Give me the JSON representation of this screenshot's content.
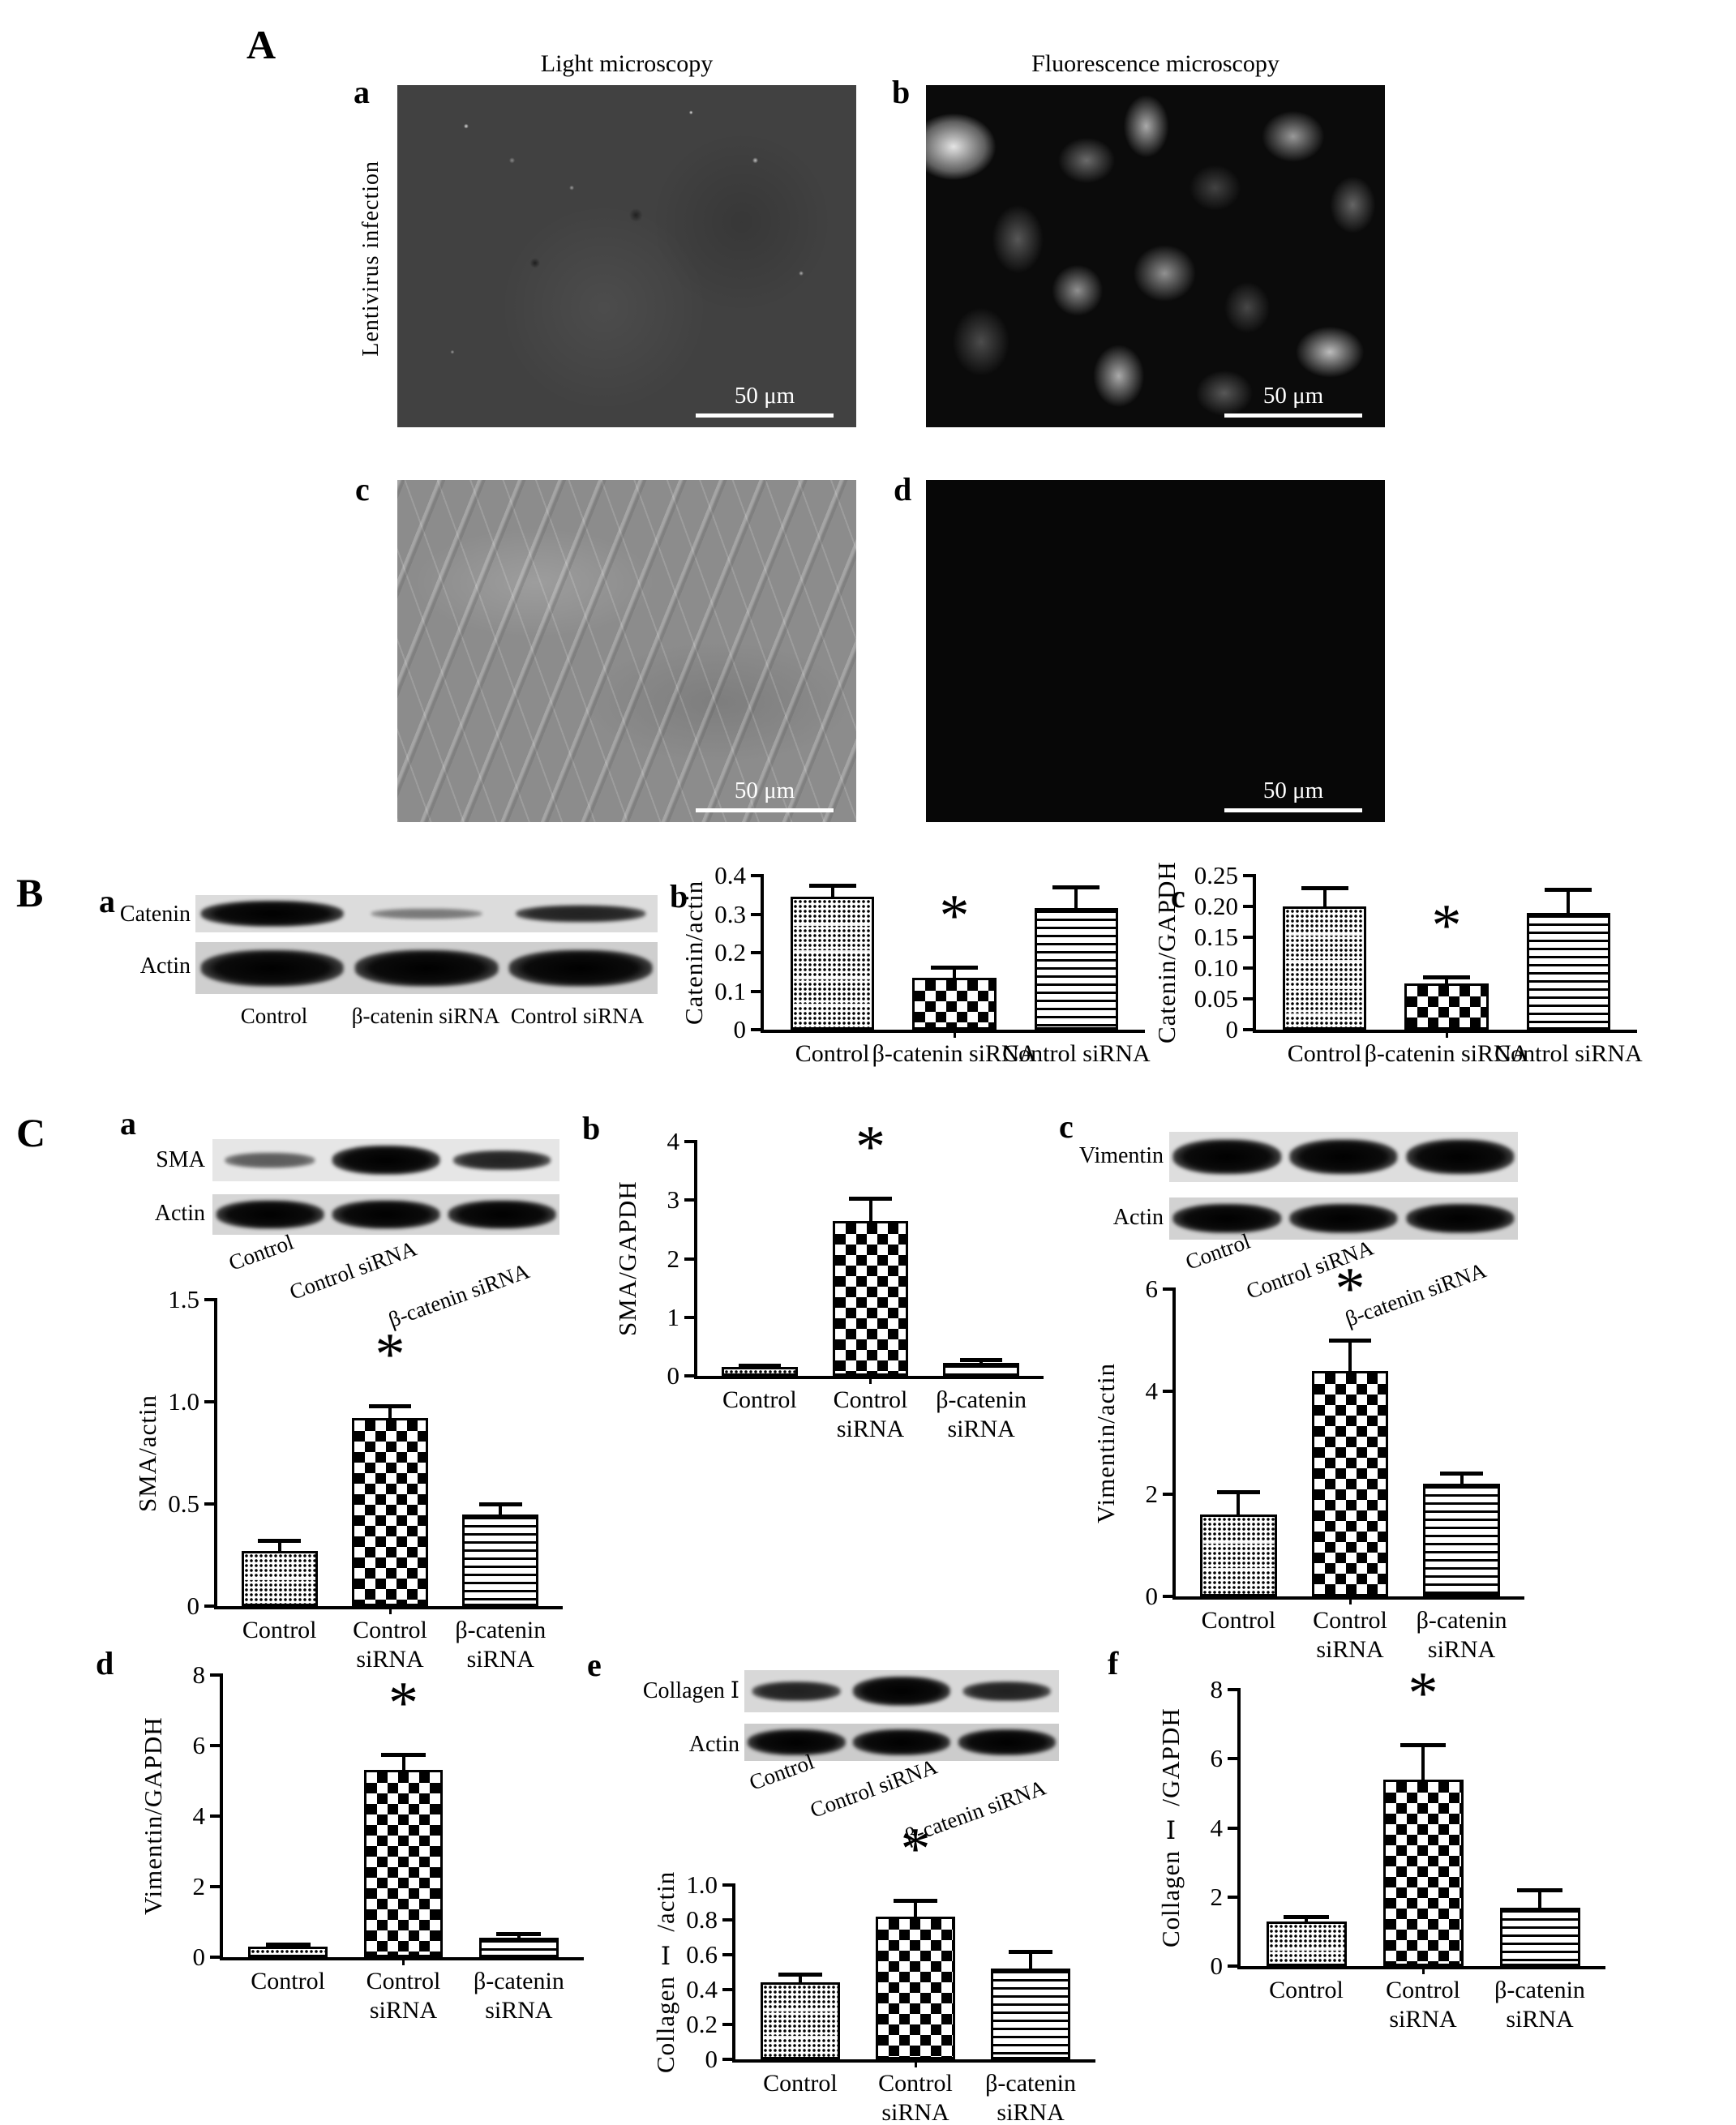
{
  "panel_a": {
    "label": "A",
    "col_titles": [
      "Light microscopy",
      "Fluorescence microscopy"
    ],
    "row_label": "Lentivirus infection",
    "image_labels": [
      "a",
      "b",
      "c",
      "d"
    ],
    "scale_bar": "50 μm"
  },
  "panel_b": {
    "label": "B",
    "sub_labels": [
      "a",
      "b",
      "c"
    ],
    "blot": {
      "rows": [
        {
          "label": "Catenin",
          "bands": [
            "strong",
            "faint",
            "medium"
          ]
        },
        {
          "label": "Actin",
          "bands": [
            "strong",
            "strong",
            "strong"
          ]
        }
      ],
      "lanes": [
        "Control",
        "β-catenin siRNA",
        "Control siRNA"
      ]
    }
  },
  "panel_c": {
    "label": "C",
    "sub_labels": [
      "a",
      "b",
      "c",
      "d",
      "e",
      "f"
    ],
    "blots": [
      {
        "rows": [
          {
            "label": "SMA",
            "bands": [
              "weak",
              "strong",
              "medium"
            ]
          },
          {
            "label": "Actin",
            "bands": [
              "strong",
              "strong",
              "strong"
            ]
          }
        ],
        "lanes": [
          "Control",
          "Control siRNA",
          "β-catenin siRNA"
        ]
      },
      {
        "rows": [
          {
            "label": "Vimentin",
            "bands": [
              "strong",
              "strong",
              "strong"
            ]
          },
          {
            "label": "Actin",
            "bands": [
              "strong",
              "strong",
              "strong"
            ]
          }
        ],
        "lanes": [
          "Control",
          "Control siRNA",
          "β-catenin siRNA"
        ]
      },
      {
        "rows": [
          {
            "label": "Collagen Ⅰ",
            "bands": [
              "medium",
              "strong",
              "medium"
            ]
          },
          {
            "label": "Actin",
            "bands": [
              "strong",
              "strong",
              "strong"
            ]
          }
        ],
        "lanes": [
          "Control",
          "Control siRNA",
          "β-catenin siRNA"
        ]
      }
    ]
  },
  "chart_data": [
    {
      "panel": "B",
      "sub": "b",
      "type": "bar",
      "ylabel": "Catenin/actin",
      "ylim": [
        0,
        0.4
      ],
      "yticks": [
        "0",
        "0.1",
        "0.2",
        "0.3",
        "0.4"
      ],
      "categories": [
        [
          "Control"
        ],
        [
          "β-catenin siRNA"
        ],
        [
          "Control siRNA"
        ]
      ],
      "values": [
        0.345,
        0.135,
        0.315
      ],
      "errors": [
        0.03,
        0.027,
        0.055
      ],
      "sig_index": 1,
      "sig_marker": "*",
      "patterns": [
        "fine-dots",
        "checker",
        "hlines"
      ]
    },
    {
      "panel": "B",
      "sub": "c",
      "type": "bar",
      "ylabel": "Catenin/GAPDH",
      "ylim": [
        0,
        0.25
      ],
      "yticks": [
        "0",
        "0.05",
        "0.10",
        "0.15",
        "0.20",
        "0.25"
      ],
      "categories": [
        [
          "Control"
        ],
        [
          "β-catenin siRNA"
        ],
        [
          "Control siRNA"
        ]
      ],
      "values": [
        0.2,
        0.075,
        0.19
      ],
      "errors": [
        0.03,
        0.01,
        0.038
      ],
      "sig_index": 1,
      "sig_marker": "*",
      "patterns": [
        "fine-dots",
        "checker",
        "hlines"
      ]
    },
    {
      "panel": "C",
      "sub": "a",
      "type": "bar",
      "ylabel": "SMA/actin",
      "ylim": [
        0,
        1.5
      ],
      "yticks": [
        "0",
        "0.5",
        "1.0",
        "1.5"
      ],
      "categories": [
        [
          "Control"
        ],
        [
          "Control",
          "siRNA"
        ],
        [
          "β-catenin",
          "siRNA"
        ]
      ],
      "values": [
        0.27,
        0.92,
        0.45
      ],
      "errors": [
        0.05,
        0.06,
        0.05
      ],
      "sig_index": 1,
      "sig_marker": "*",
      "patterns": [
        "fine-dots",
        "checker",
        "hlines"
      ]
    },
    {
      "panel": "C",
      "sub": "b",
      "type": "bar",
      "ylabel": "SMA/GAPDH",
      "ylim": [
        0,
        4
      ],
      "yticks": [
        "0",
        "1",
        "2",
        "3",
        "4"
      ],
      "categories": [
        [
          "Control"
        ],
        [
          "Control",
          "siRNA"
        ],
        [
          "β-catenin",
          "siRNA"
        ]
      ],
      "values": [
        0.15,
        2.65,
        0.22
      ],
      "errors": [
        0.03,
        0.38,
        0.06
      ],
      "sig_index": 1,
      "sig_marker": "*",
      "patterns": [
        "fine-dots",
        "checker",
        "hlines"
      ]
    },
    {
      "panel": "C",
      "sub": "c",
      "type": "bar",
      "ylabel": "Vimentin/actin",
      "ylim": [
        0,
        6
      ],
      "yticks": [
        "0",
        "2",
        "4",
        "6"
      ],
      "categories": [
        [
          "Control"
        ],
        [
          "Control",
          "siRNA"
        ],
        [
          "β-catenin",
          "siRNA"
        ]
      ],
      "values": [
        1.6,
        4.4,
        2.2
      ],
      "errors": [
        0.45,
        0.6,
        0.2
      ],
      "sig_index": 1,
      "sig_marker": "*",
      "patterns": [
        "fine-dots",
        "checker",
        "hlines"
      ]
    },
    {
      "panel": "C",
      "sub": "d",
      "type": "bar",
      "ylabel": "Vimentin/GAPDH",
      "ylim": [
        0,
        8
      ],
      "yticks": [
        "0",
        "2",
        "4",
        "6",
        "8"
      ],
      "categories": [
        [
          "Control"
        ],
        [
          "Control",
          "siRNA"
        ],
        [
          "β-catenin",
          "siRNA"
        ]
      ],
      "values": [
        0.3,
        5.3,
        0.55
      ],
      "errors": [
        0.06,
        0.45,
        0.12
      ],
      "sig_index": 1,
      "sig_marker": "*",
      "patterns": [
        "fine-dots",
        "checker",
        "hlines"
      ]
    },
    {
      "panel": "C",
      "sub": "e",
      "type": "bar",
      "ylabel": "Collagen Ⅰ /actin",
      "ylim": [
        0,
        1.0
      ],
      "yticks": [
        "0",
        "0.2",
        "0.4",
        "0.6",
        "0.8",
        "1.0"
      ],
      "categories": [
        [
          "Control"
        ],
        [
          "Control",
          "siRNA"
        ],
        [
          "β-catenin",
          "siRNA"
        ]
      ],
      "values": [
        0.44,
        0.82,
        0.52
      ],
      "errors": [
        0.05,
        0.09,
        0.1
      ],
      "sig_index": 1,
      "sig_marker": "*",
      "patterns": [
        "fine-dots",
        "checker",
        "hlines"
      ]
    },
    {
      "panel": "C",
      "sub": "f",
      "type": "bar",
      "ylabel": "Collagen Ⅰ /GAPDH",
      "ylim": [
        0,
        8
      ],
      "yticks": [
        "0",
        "2",
        "4",
        "6",
        "8"
      ],
      "categories": [
        [
          "Control"
        ],
        [
          "Control",
          "siRNA"
        ],
        [
          "β-catenin",
          "siRNA"
        ]
      ],
      "values": [
        1.3,
        5.4,
        1.7
      ],
      "errors": [
        0.12,
        1.0,
        0.5
      ],
      "sig_index": 1,
      "sig_marker": "*",
      "patterns": [
        "fine-dots",
        "checker",
        "hlines"
      ]
    }
  ]
}
